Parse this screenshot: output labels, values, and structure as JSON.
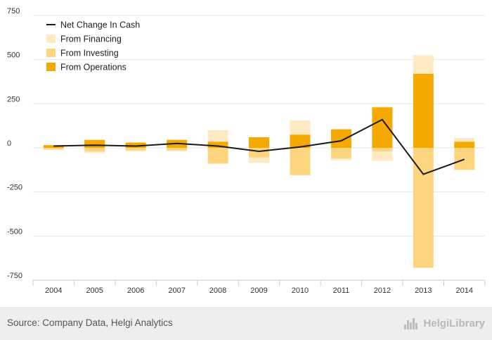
{
  "chart_data": {
    "type": "bar",
    "stacked": true,
    "categories": [
      "2004",
      "2005",
      "2006",
      "2007",
      "2008",
      "2009",
      "2010",
      "2011",
      "2012",
      "2013",
      "2014"
    ],
    "series": [
      {
        "name": "From Operations",
        "kind": "bar",
        "color": "#f5a800",
        "values": [
          15,
          45,
          30,
          45,
          35,
          60,
          75,
          105,
          230,
          420,
          35
        ]
      },
      {
        "name": "From Investing",
        "kind": "bar",
        "color": "#fdd57f",
        "values": [
          -10,
          -20,
          -15,
          -15,
          -90,
          -55,
          -155,
          -60,
          -20,
          -680,
          -125
        ]
      },
      {
        "name": "From Financing",
        "kind": "bar",
        "color": "#feeac2",
        "values": [
          0,
          -10,
          -5,
          -5,
          65,
          -30,
          80,
          -10,
          -55,
          105,
          20
        ]
      },
      {
        "name": "Net Change In Cash",
        "kind": "line",
        "color": "#1a1a1a",
        "values": [
          10,
          15,
          10,
          25,
          10,
          -20,
          5,
          40,
          160,
          -150,
          -65
        ]
      }
    ],
    "yticks": [
      750,
      500,
      250,
      0,
      -250,
      -500,
      -750
    ],
    "ylim": [
      -750,
      750
    ],
    "legend_position": "top-left",
    "grid": true
  },
  "footer": {
    "source": "Source: Company Data, Helgi Analytics",
    "brand": "HelgiLibrary"
  }
}
